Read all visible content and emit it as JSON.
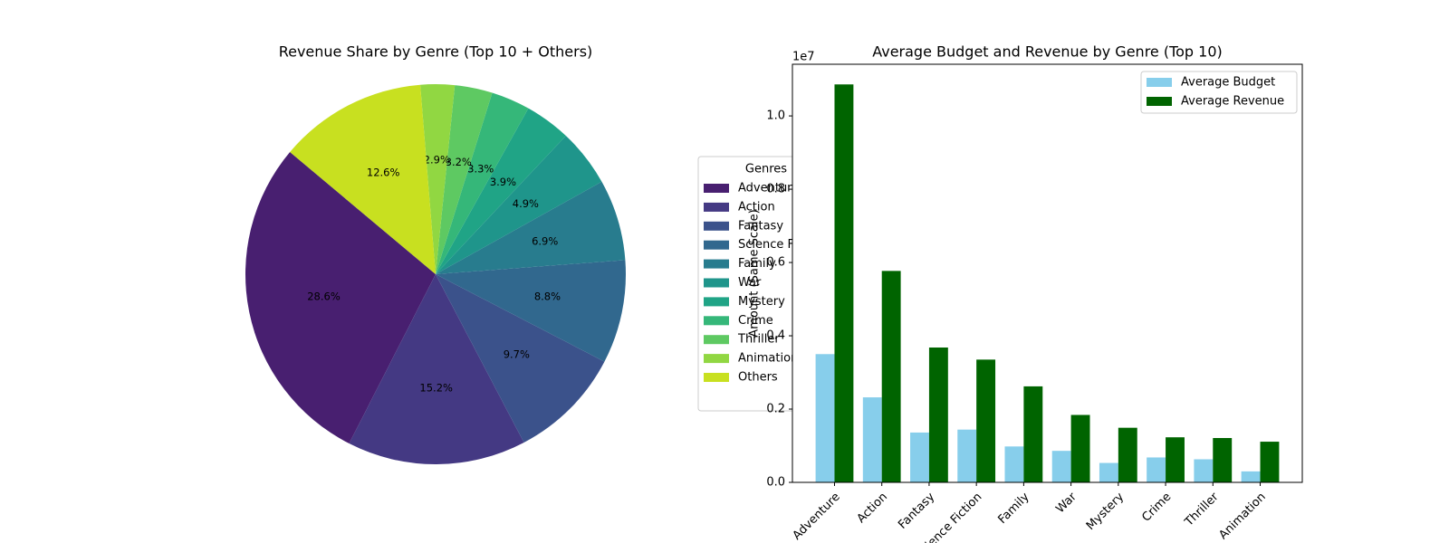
{
  "chart_data": [
    {
      "type": "pie",
      "title": "Revenue Share by Genre (Top 10 + Others)",
      "categories": [
        "Adventure",
        "Action",
        "Fantasy",
        "Science Fiction",
        "Family",
        "War",
        "Mystery",
        "Crime",
        "Thriller",
        "Animation",
        "Others"
      ],
      "values": [
        28.6,
        15.2,
        9.7,
        8.8,
        6.9,
        4.9,
        3.9,
        3.3,
        3.2,
        2.9,
        12.6
      ],
      "value_labels": [
        "28.6%",
        "15.2%",
        "9.7%",
        "8.8%",
        "6.9%",
        "4.9%",
        "3.9%",
        "3.3%",
        "3.2%",
        "2.9%",
        "12.6%"
      ],
      "colors": [
        "#481f70",
        "#443983",
        "#3b528b",
        "#31688e",
        "#287c8e",
        "#1f958b",
        "#20a486",
        "#35b779",
        "#5ec962",
        "#91d742",
        "#c8e020"
      ],
      "legend_title": "Genres"
    },
    {
      "type": "bar",
      "title": "Average Budget and Revenue by Genre (Top 10)",
      "ylabel": "Amount (Same Scale)",
      "offset_label": "1e7",
      "categories": [
        "Adventure",
        "Action",
        "Fantasy",
        "Science Fiction",
        "Family",
        "War",
        "Mystery",
        "Crime",
        "Thriller",
        "Animation"
      ],
      "series": [
        {
          "name": "Average Budget",
          "color": "#87ceeb",
          "values": [
            3500000,
            2320000,
            1360000,
            1440000,
            980000,
            860000,
            530000,
            680000,
            630000,
            300000
          ]
        },
        {
          "name": "Average Revenue",
          "color": "#006400",
          "values": [
            10860000,
            5770000,
            3680000,
            3350000,
            2620000,
            1840000,
            1490000,
            1230000,
            1210000,
            1110000
          ]
        }
      ],
      "ylim": [
        0,
        11410000
      ],
      "yticks": [
        {
          "value": 0,
          "label": "0.0"
        },
        {
          "value": 2000000,
          "label": "0.2"
        },
        {
          "value": 4000000,
          "label": "0.4"
        },
        {
          "value": 6000000,
          "label": "0.6"
        },
        {
          "value": 8000000,
          "label": "0.8"
        },
        {
          "value": 10000000,
          "label": "1.0"
        }
      ],
      "legend": "upper right"
    }
  ]
}
